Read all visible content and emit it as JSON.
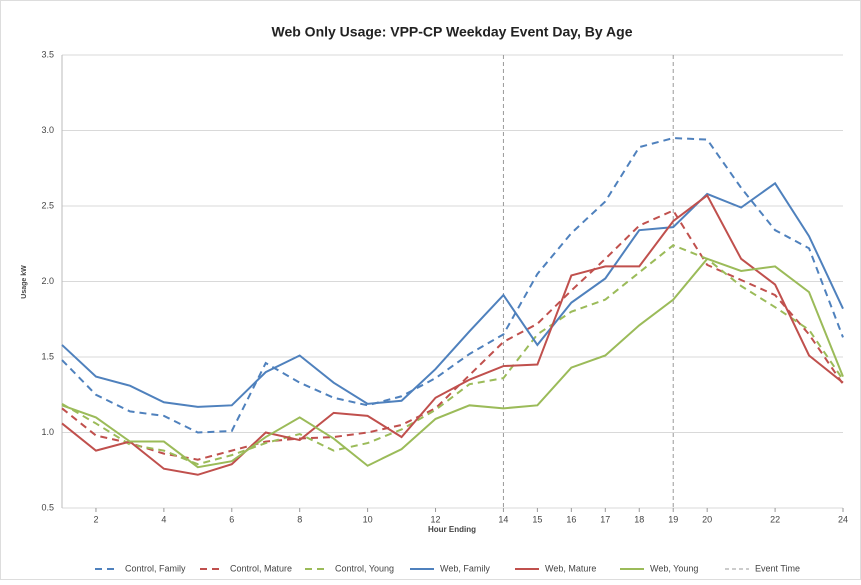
{
  "chart_data": {
    "type": "line",
    "title": "Web Only Usage: VPP-CP Weekday Event Day, By Age",
    "x_label": "Hour Ending",
    "y_label": "Usage kW",
    "x": [
      1,
      2,
      3,
      4,
      5,
      6,
      7,
      8,
      9,
      10,
      11,
      12,
      13,
      14,
      15,
      16,
      17,
      18,
      19,
      20,
      21,
      22,
      23,
      24
    ],
    "xlim": [
      1,
      24
    ],
    "xticks": [
      2,
      4,
      6,
      8,
      10,
      12,
      14,
      15,
      16,
      17,
      18,
      19,
      20,
      22,
      24
    ],
    "ylim": [
      0.5,
      3.5
    ],
    "yticks": [
      0.5,
      {
        "value": 1,
        "label": "1.0"
      },
      1.5,
      {
        "value": 2,
        "label": "2.0"
      },
      2.5,
      {
        "value": 3,
        "label": "3.0"
      },
      3.5
    ],
    "grid": true,
    "legend": "bottom",
    "series": [
      {
        "name": "Control, Family",
        "color": "#4f81bd",
        "dashed": true,
        "values": [
          1.48,
          1.25,
          1.14,
          1.11,
          1.0,
          1.01,
          1.46,
          1.33,
          1.23,
          1.18,
          1.24,
          1.36,
          1.52,
          1.65,
          2.05,
          2.32,
          2.53,
          2.89,
          2.95,
          2.94,
          2.62,
          2.34,
          2.22,
          1.63
        ]
      },
      {
        "name": "Control, Mature",
        "color": "#c0504d",
        "dashed": true,
        "values": [
          1.16,
          0.98,
          0.93,
          0.86,
          0.82,
          0.88,
          0.94,
          0.96,
          0.97,
          1.0,
          1.05,
          1.16,
          1.38,
          1.6,
          1.72,
          1.94,
          2.15,
          2.37,
          2.47,
          2.11,
          2.01,
          1.91,
          1.65,
          1.32
        ]
      },
      {
        "name": "Control, Young",
        "color": "#9bbb59",
        "dashed": true,
        "values": [
          1.19,
          1.06,
          0.92,
          0.88,
          0.79,
          0.85,
          0.93,
          0.99,
          0.88,
          0.93,
          1.02,
          1.15,
          1.32,
          1.36,
          1.65,
          1.8,
          1.88,
          2.06,
          2.24,
          2.15,
          1.97,
          1.83,
          1.68,
          1.35
        ]
      },
      {
        "name": "Web, Family",
        "color": "#4f81bd",
        "dashed": false,
        "values": [
          1.58,
          1.37,
          1.31,
          1.2,
          1.17,
          1.18,
          1.4,
          1.51,
          1.33,
          1.19,
          1.21,
          1.42,
          1.67,
          1.91,
          1.58,
          1.86,
          2.02,
          2.34,
          2.36,
          2.58,
          2.49,
          2.65,
          2.3,
          1.82
        ]
      },
      {
        "name": "Web, Mature",
        "color": "#c0504d",
        "dashed": false,
        "values": [
          1.06,
          0.88,
          0.94,
          0.76,
          0.72,
          0.79,
          1.0,
          0.95,
          1.13,
          1.11,
          0.97,
          1.23,
          1.35,
          1.44,
          1.45,
          2.04,
          2.1,
          2.1,
          2.4,
          2.57,
          2.15,
          1.98,
          1.51,
          1.33
        ]
      },
      {
        "name": "Web, Young",
        "color": "#9bbb59",
        "dashed": false,
        "values": [
          1.18,
          1.1,
          0.94,
          0.94,
          0.77,
          0.81,
          0.97,
          1.1,
          0.96,
          0.78,
          0.89,
          1.09,
          1.18,
          1.16,
          1.18,
          1.43,
          1.51,
          1.71,
          1.88,
          2.15,
          2.07,
          2.1,
          1.93,
          1.37
        ]
      }
    ],
    "event_time": {
      "name": "Event Time",
      "color": "#999999",
      "x": [
        14,
        19
      ]
    }
  }
}
